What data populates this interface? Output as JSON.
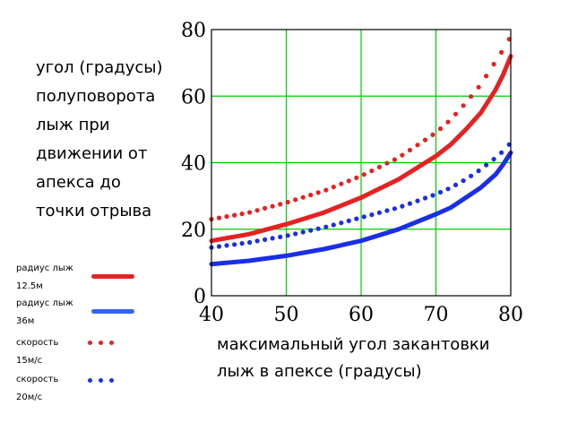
{
  "chart_data": {
    "type": "line",
    "ylabel_lines": [
      "угол (градусы)",
      "полуповорота",
      "лыж при",
      "движении от",
      "апекса до",
      "точки отрыва"
    ],
    "xlabel_lines": [
      "максимальный угол закантовки",
      "лыж в апексе (градусы)"
    ],
    "xlim": [
      40,
      80
    ],
    "ylim": [
      0,
      80
    ],
    "x_ticks": [
      "40",
      "50",
      "60",
      "70",
      "80"
    ],
    "y_ticks": [
      "0",
      "20",
      "40",
      "60",
      "80"
    ],
    "grid": true,
    "grid_color": "#00cc00",
    "legend": [
      {
        "text": [
          "радиус лыж",
          "12.5м"
        ],
        "style": "line",
        "color": "#e52222"
      },
      {
        "text": [
          "радиус лыж",
          "36м"
        ],
        "style": "line",
        "color": "#3366ee"
      },
      {
        "text": [
          "скорость",
          "15м/с"
        ],
        "style": "dots",
        "color": "#e52222"
      },
      {
        "text": [
          "скорость",
          "20м/с"
        ],
        "style": "dots",
        "color": "#1133ee"
      }
    ],
    "series": [
      {
        "style": "line",
        "color": "#e52222",
        "x": [
          40,
          45,
          50,
          55,
          60,
          65,
          70,
          72,
          74,
          76,
          78,
          79,
          80
        ],
        "y": [
          16.5,
          18.5,
          21.5,
          25,
          29.5,
          35,
          42,
          45.5,
          50,
          55,
          62,
          66.5,
          72
        ]
      },
      {
        "style": "line",
        "color": "#1a2ee6",
        "x": [
          40,
          45,
          50,
          55,
          60,
          65,
          70,
          72,
          74,
          76,
          78,
          79,
          80
        ],
        "y": [
          9.5,
          10.5,
          12,
          14,
          16.5,
          20,
          24.5,
          26.5,
          29.5,
          32.5,
          36.5,
          39.5,
          43
        ]
      },
      {
        "style": "dots",
        "color": "#e52222",
        "x": [
          40,
          45,
          50,
          55,
          60,
          65,
          70,
          72,
          74,
          76,
          78,
          79,
          80
        ],
        "y": [
          23,
          25,
          28,
          31.5,
          36,
          41.5,
          49,
          53,
          58,
          63.5,
          70.5,
          74,
          78
        ]
      },
      {
        "style": "dots",
        "color": "#1a2ee6",
        "x": [
          40,
          45,
          50,
          55,
          60,
          65,
          70,
          72,
          74,
          76,
          78,
          79,
          80
        ],
        "y": [
          14.5,
          16,
          18,
          20.5,
          23.5,
          26.5,
          30.5,
          32.5,
          35,
          38,
          41.5,
          43.5,
          46
        ]
      }
    ]
  }
}
